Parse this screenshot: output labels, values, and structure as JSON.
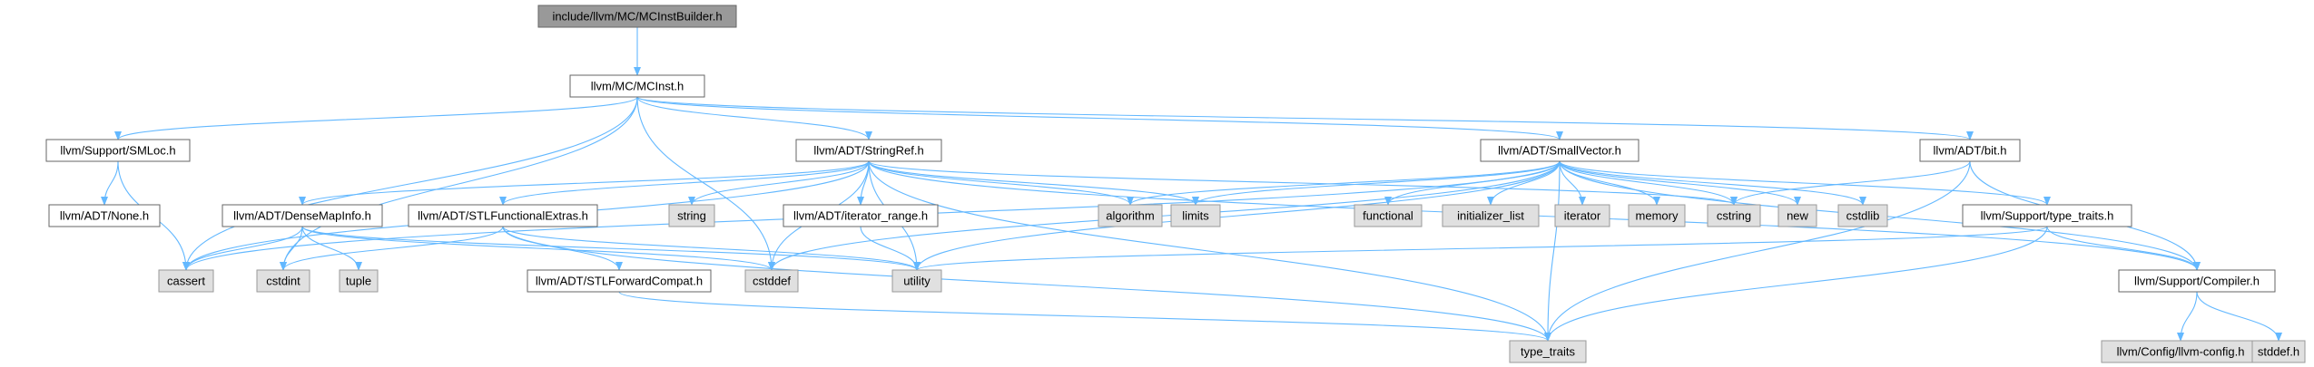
{
  "colors": {
    "edge": "#63b8ff",
    "box_border": "#666666",
    "root_fill": "#999999",
    "header_fill": "#ffffff",
    "system_fill": "#e0e0e0",
    "system_border": "#999999"
  },
  "nodes": [
    {
      "id": "mcinstbuilder",
      "label": "include/llvm/MC/MCInstBuilder.h",
      "kind": "root"
    },
    {
      "id": "mcinst",
      "label": "llvm/MC/MCInst.h",
      "kind": "header"
    },
    {
      "id": "smloc",
      "label": "llvm/Support/SMLoc.h",
      "kind": "header"
    },
    {
      "id": "stringref",
      "label": "llvm/ADT/StringRef.h",
      "kind": "header"
    },
    {
      "id": "smallvector",
      "label": "llvm/ADT/SmallVector.h",
      "kind": "header"
    },
    {
      "id": "bit",
      "label": "llvm/ADT/bit.h",
      "kind": "header"
    },
    {
      "id": "none",
      "label": "llvm/ADT/None.h",
      "kind": "header"
    },
    {
      "id": "densemapinfo",
      "label": "llvm/ADT/DenseMapInfo.h",
      "kind": "header"
    },
    {
      "id": "stlfunctionalextras",
      "label": "llvm/ADT/STLFunctionalExtras.h",
      "kind": "header"
    },
    {
      "id": "string",
      "label": "string",
      "kind": "system"
    },
    {
      "id": "iteratorrange",
      "label": "llvm/ADT/iterator_range.h",
      "kind": "header"
    },
    {
      "id": "algorithm",
      "label": "algorithm",
      "kind": "system"
    },
    {
      "id": "limits",
      "label": "limits",
      "kind": "system"
    },
    {
      "id": "functional",
      "label": "functional",
      "kind": "system"
    },
    {
      "id": "initializer_list",
      "label": "initializer_list",
      "kind": "system"
    },
    {
      "id": "iterator",
      "label": "iterator",
      "kind": "system"
    },
    {
      "id": "memory",
      "label": "memory",
      "kind": "system"
    },
    {
      "id": "cstring",
      "label": "cstring",
      "kind": "system"
    },
    {
      "id": "new",
      "label": "new",
      "kind": "system"
    },
    {
      "id": "cstdlib",
      "label": "cstdlib",
      "kind": "system"
    },
    {
      "id": "typetraitsh",
      "label": "llvm/Support/type_traits.h",
      "kind": "header"
    },
    {
      "id": "cassert",
      "label": "cassert",
      "kind": "system"
    },
    {
      "id": "cstdint",
      "label": "cstdint",
      "kind": "system"
    },
    {
      "id": "tuple",
      "label": "tuple",
      "kind": "system"
    },
    {
      "id": "stlforwardcompat",
      "label": "llvm/ADT/STLForwardCompat.h",
      "kind": "header"
    },
    {
      "id": "cstddef",
      "label": "cstddef",
      "kind": "system"
    },
    {
      "id": "utility",
      "label": "utility",
      "kind": "system"
    },
    {
      "id": "compiler",
      "label": "llvm/Support/Compiler.h",
      "kind": "header"
    },
    {
      "id": "type_traits",
      "label": "type_traits",
      "kind": "system"
    },
    {
      "id": "llvmconfig",
      "label": "llvm/Config/llvm-config.h",
      "kind": "system"
    },
    {
      "id": "stddefh",
      "label": "stddef.h",
      "kind": "system"
    }
  ],
  "edges": [
    [
      "mcinstbuilder",
      "mcinst"
    ],
    [
      "mcinst",
      "smloc"
    ],
    [
      "mcinst",
      "stringref"
    ],
    [
      "mcinst",
      "smallvector"
    ],
    [
      "mcinst",
      "bit"
    ],
    [
      "mcinst",
      "cassert"
    ],
    [
      "mcinst",
      "cstdint"
    ],
    [
      "mcinst",
      "cstddef"
    ],
    [
      "smloc",
      "none"
    ],
    [
      "smloc",
      "cassert"
    ],
    [
      "stringref",
      "densemapinfo"
    ],
    [
      "stringref",
      "stlfunctionalextras"
    ],
    [
      "stringref",
      "string"
    ],
    [
      "stringref",
      "iteratorrange"
    ],
    [
      "stringref",
      "algorithm"
    ],
    [
      "stringref",
      "limits"
    ],
    [
      "stringref",
      "cstring"
    ],
    [
      "stringref",
      "cassert"
    ],
    [
      "stringref",
      "cstddef"
    ],
    [
      "stringref",
      "utility"
    ],
    [
      "stringref",
      "type_traits"
    ],
    [
      "stringref",
      "compiler"
    ],
    [
      "smallvector",
      "compiler"
    ],
    [
      "smallvector",
      "typetraitsh"
    ],
    [
      "smallvector",
      "algorithm"
    ],
    [
      "smallvector",
      "cassert"
    ],
    [
      "smallvector",
      "cstddef"
    ],
    [
      "smallvector",
      "cstdlib"
    ],
    [
      "smallvector",
      "cstring"
    ],
    [
      "smallvector",
      "functional"
    ],
    [
      "smallvector",
      "initializer_list"
    ],
    [
      "smallvector",
      "iterator"
    ],
    [
      "smallvector",
      "limits"
    ],
    [
      "smallvector",
      "memory"
    ],
    [
      "smallvector",
      "new"
    ],
    [
      "smallvector",
      "type_traits"
    ],
    [
      "smallvector",
      "utility"
    ],
    [
      "bit",
      "compiler"
    ],
    [
      "bit",
      "cstring"
    ],
    [
      "bit",
      "type_traits"
    ],
    [
      "densemapinfo",
      "cassert"
    ],
    [
      "densemapinfo",
      "cstddef"
    ],
    [
      "densemapinfo",
      "cstdint"
    ],
    [
      "densemapinfo",
      "tuple"
    ],
    [
      "densemapinfo",
      "utility"
    ],
    [
      "stlfunctionalextras",
      "stlforwardcompat"
    ],
    [
      "stlfunctionalextras",
      "cstdint"
    ],
    [
      "stlfunctionalextras",
      "type_traits"
    ],
    [
      "stlfunctionalextras",
      "utility"
    ],
    [
      "iteratorrange",
      "utility"
    ],
    [
      "typetraitsh",
      "compiler"
    ],
    [
      "typetraitsh",
      "type_traits"
    ],
    [
      "typetraitsh",
      "utility"
    ],
    [
      "stlforwardcompat",
      "type_traits"
    ],
    [
      "compiler",
      "llvmconfig"
    ],
    [
      "compiler",
      "stddefh"
    ]
  ]
}
